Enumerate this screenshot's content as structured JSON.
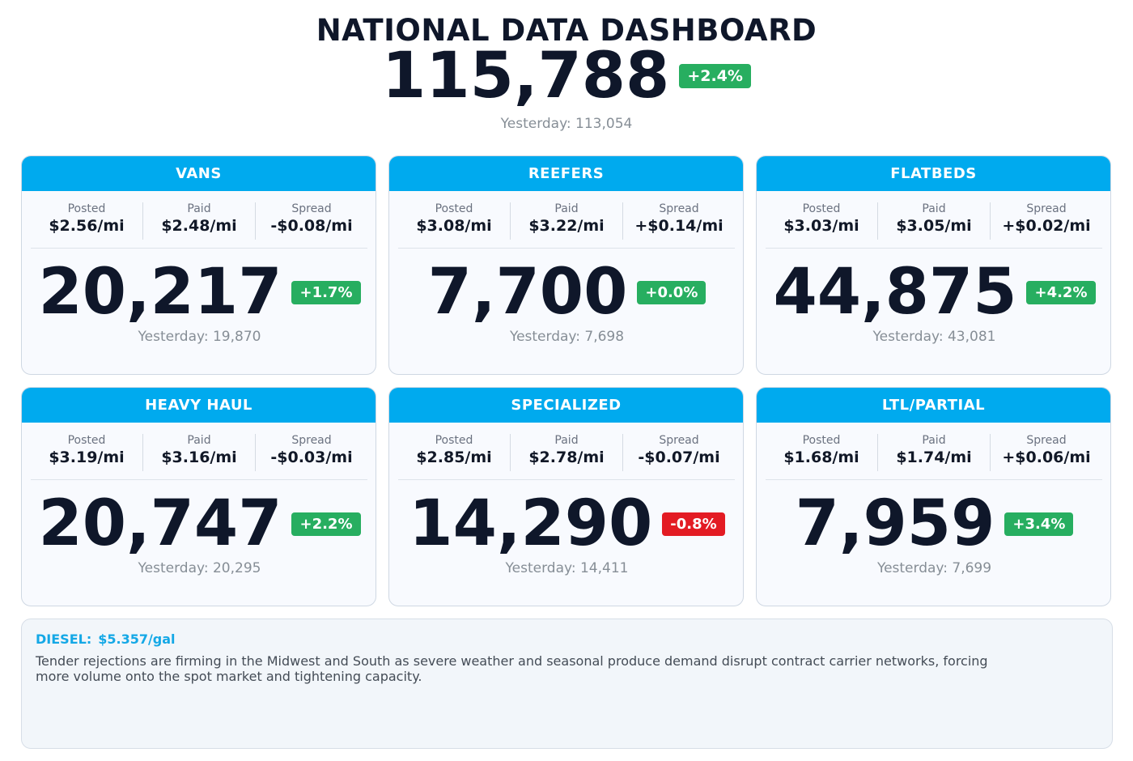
{
  "header": {
    "title": "NATIONAL DATA DASHBOARD",
    "total": "115,788",
    "change": "+2.4%",
    "yesterday": "Yesterday: 113,054"
  },
  "labels": {
    "posted": "Posted",
    "paid": "Paid",
    "spread": "Spread"
  },
  "cards": [
    {
      "title": "VANS",
      "posted": "$2.56/mi",
      "paid": "$2.48/mi",
      "spread": "-$0.08/mi",
      "count": "20,217",
      "change": "+1.7%",
      "yesterday": "Yesterday: 19,870"
    },
    {
      "title": "REEFERS",
      "posted": "$3.08/mi",
      "paid": "$3.22/mi",
      "spread": "+$0.14/mi",
      "count": "7,700",
      "change": "+0.0%",
      "yesterday": "Yesterday: 7,698"
    },
    {
      "title": "FLATBEDS",
      "posted": "$3.03/mi",
      "paid": "$3.05/mi",
      "spread": "+$0.02/mi",
      "count": "44,875",
      "change": "+4.2%",
      "yesterday": "Yesterday: 43,081"
    },
    {
      "title": "HEAVY HAUL",
      "posted": "$3.19/mi",
      "paid": "$3.16/mi",
      "spread": "-$0.03/mi",
      "count": "20,747",
      "change": "+2.2%",
      "yesterday": "Yesterday: 20,295"
    },
    {
      "title": "SPECIALIZED",
      "posted": "$2.85/mi",
      "paid": "$2.78/mi",
      "spread": "-$0.07/mi",
      "count": "14,290",
      "change": "-0.8%",
      "yesterday": "Yesterday: 14,411"
    },
    {
      "title": "LTL/PARTIAL",
      "posted": "$1.68/mi",
      "paid": "$1.74/mi",
      "spread": "+$0.06/mi",
      "count": "7,959",
      "change": "+3.4%",
      "yesterday": "Yesterday: 7,699"
    }
  ],
  "news": {
    "diesel_label": "DIESEL:",
    "diesel_value": "$5.357/gal",
    "text": "Tender rejections are firming in the Midwest and South as severe weather and seasonal produce demand disrupt contract carrier networks, forcing more volume onto the spot market and tightening capacity."
  },
  "colors": {
    "header_bg": "#00aaee",
    "positive": "#27ae60",
    "negative": "#e31b23",
    "accent_text": "#14a8e6"
  }
}
